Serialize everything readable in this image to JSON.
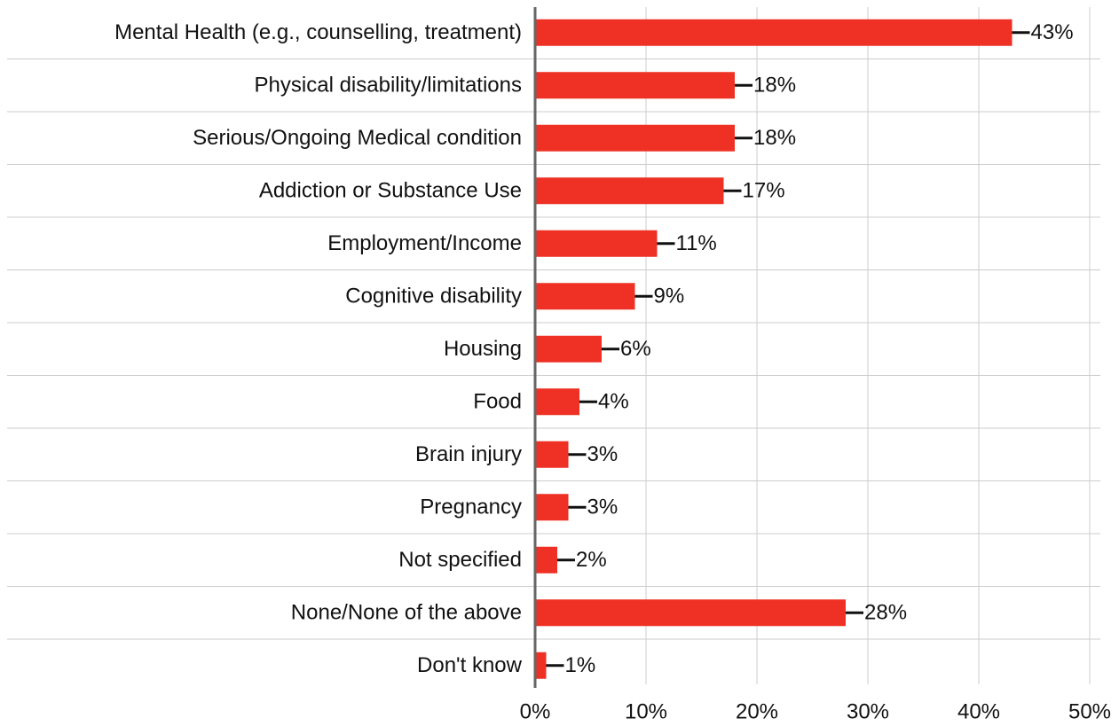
{
  "chart_data": {
    "type": "barh",
    "categories": [
      "Mental Health (e.g., counselling, treatment)",
      "Physical disability/limitations",
      "Serious/Ongoing Medical condition",
      "Addiction or Substance Use",
      "Employment/Income",
      "Cognitive disability",
      "Housing",
      "Food",
      "Brain injury",
      "Pregnancy",
      "Not specified",
      "None/None of the above",
      "Don't know"
    ],
    "values": [
      43,
      18,
      18,
      17,
      11,
      9,
      6,
      4,
      3,
      3,
      2,
      28,
      1
    ],
    "value_labels": [
      "43%",
      "18%",
      "18%",
      "17%",
      "11%",
      "9%",
      "6%",
      "4%",
      "3%",
      "3%",
      "2%",
      "28%",
      "1%"
    ],
    "color": "#ee3124",
    "xlim": [
      0,
      50
    ],
    "xticks": [
      {
        "value": 0,
        "label": "0%"
      },
      {
        "value": 10,
        "label": "10%"
      },
      {
        "value": 20,
        "label": "20%"
      },
      {
        "value": 30,
        "label": "30%"
      },
      {
        "value": 40,
        "label": "40%"
      },
      {
        "value": 50,
        "label": "50%"
      }
    ],
    "grid": true
  }
}
